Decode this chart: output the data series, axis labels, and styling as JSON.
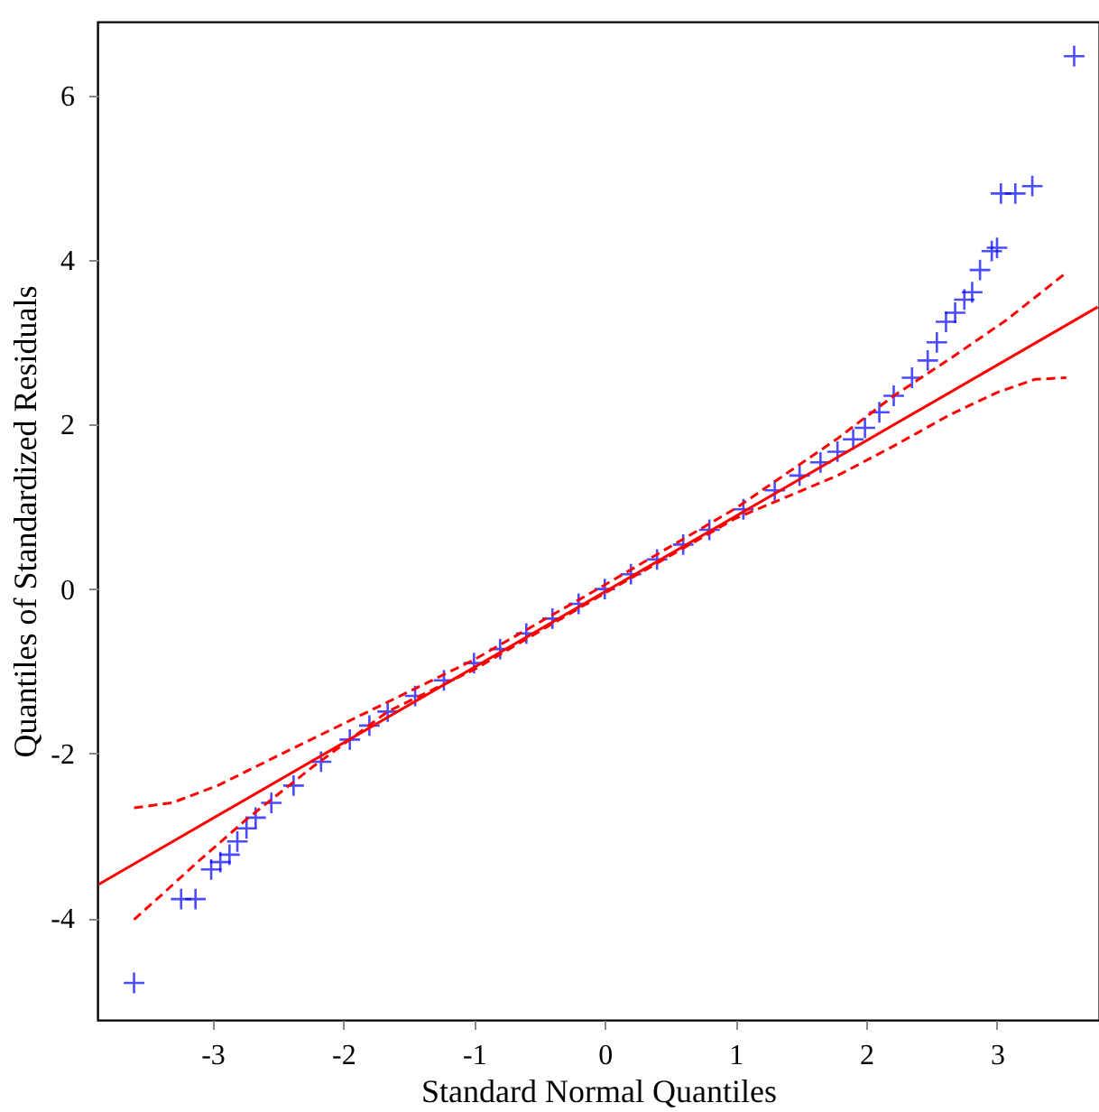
{
  "chart_data": {
    "type": "scatter",
    "xlabel": "Standard Normal Quantiles",
    "ylabel": "Quantiles of Standardized Residuals",
    "xlim": [
      -3.88,
      3.78
    ],
    "ylim": [
      -5.24,
      6.9
    ],
    "xticks": [
      -3,
      -2,
      -1,
      0,
      1,
      2,
      3
    ],
    "yticks": [
      -4,
      -2,
      0,
      2,
      4,
      6
    ],
    "grid": false,
    "series": [
      {
        "marker": "cross",
        "color": "#0000ff",
        "x": [
          -3.6,
          -3.24,
          -3.13,
          -3.01,
          -2.94,
          -2.87,
          -2.81,
          -2.74,
          -2.67,
          -2.55,
          -2.38,
          -2.17,
          -1.95,
          -1.8,
          -1.66,
          -1.45,
          -1.23,
          -1.0,
          -0.8,
          -0.6,
          -0.4,
          -0.2,
          0.0,
          0.2,
          0.4,
          0.6,
          0.8,
          1.06,
          1.3,
          1.49,
          1.65,
          1.78,
          1.9,
          1.99,
          2.1,
          2.21,
          2.35,
          2.47,
          2.54,
          2.61,
          2.68,
          2.75,
          2.81,
          2.87,
          2.96,
          3.0,
          3.03,
          3.14,
          3.27,
          3.59
        ],
        "values": [
          -4.79,
          -3.77,
          -3.77,
          -3.41,
          -3.32,
          -3.23,
          -3.07,
          -2.91,
          -2.78,
          -2.6,
          -2.39,
          -2.1,
          -1.83,
          -1.66,
          -1.49,
          -1.3,
          -1.11,
          -0.9,
          -0.73,
          -0.54,
          -0.36,
          -0.18,
          0.0,
          0.18,
          0.36,
          0.54,
          0.72,
          0.97,
          1.2,
          1.38,
          1.54,
          1.67,
          1.82,
          1.96,
          2.15,
          2.35,
          2.57,
          2.78,
          3.0,
          3.25,
          3.36,
          3.52,
          3.61,
          3.88,
          4.11,
          4.15,
          4.81,
          4.81,
          4.9,
          6.48
        ]
      },
      {
        "type": "line",
        "line_style": "solid",
        "color": "#ff0000",
        "x": [
          -3.87,
          3.77
        ],
        "values": [
          -3.59,
          3.43
        ]
      },
      {
        "type": "line",
        "line_style": "dashed",
        "color": "#ff0000",
        "x": [
          -3.6,
          -3.31,
          -2.96,
          -2.53,
          -1.95,
          -1.0,
          0.0,
          1.0,
          1.78,
          2.21,
          2.64,
          3.07,
          3.54
        ],
        "values": [
          -2.66,
          -2.6,
          -2.39,
          -2.05,
          -1.6,
          -0.86,
          0.05,
          0.98,
          1.83,
          2.35,
          2.8,
          3.27,
          3.86
        ]
      },
      {
        "type": "line",
        "line_style": "dashed",
        "color": "#ff0000",
        "x": [
          -3.6,
          -3.39,
          -3.1,
          -2.74,
          -2.24,
          -1.66,
          -1.0,
          0.0,
          1.0,
          1.78,
          2.21,
          2.64,
          3.0,
          3.29,
          3.53
        ],
        "values": [
          -4.02,
          -3.72,
          -3.3,
          -2.8,
          -2.17,
          -1.49,
          -0.98,
          -0.05,
          0.86,
          1.38,
          1.74,
          2.12,
          2.39,
          2.55,
          2.57
        ]
      }
    ]
  }
}
